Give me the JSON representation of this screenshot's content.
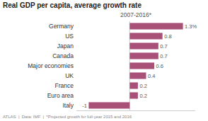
{
  "chart_data": {
    "type": "bar",
    "orientation": "horizontal",
    "title": "Real GDP per capita, average growth rate",
    "subtitle": "2007-2016*",
    "categories": [
      "Germany",
      "US",
      "Japan",
      "Canada",
      "Major economies",
      "UK",
      "France",
      "Euro area",
      "Italy"
    ],
    "values": [
      1.3,
      0.8,
      0.7,
      0.7,
      0.6,
      0.4,
      0.2,
      0.2,
      -1.0
    ],
    "value_labels": [
      "1.3%",
      "0.8",
      "0.7",
      "0.7",
      "0.6",
      "0.4",
      "0.2",
      "0.2",
      "-1"
    ],
    "color": "#a85078",
    "xlim": [
      -1.3,
      1.6
    ],
    "data_labels": true,
    "tick_labels": "y",
    "grid": false,
    "annotations": [
      "ATLAS  |  Data: IMF  |  *Projected growth for full-year 2015 and 2016"
    ]
  }
}
